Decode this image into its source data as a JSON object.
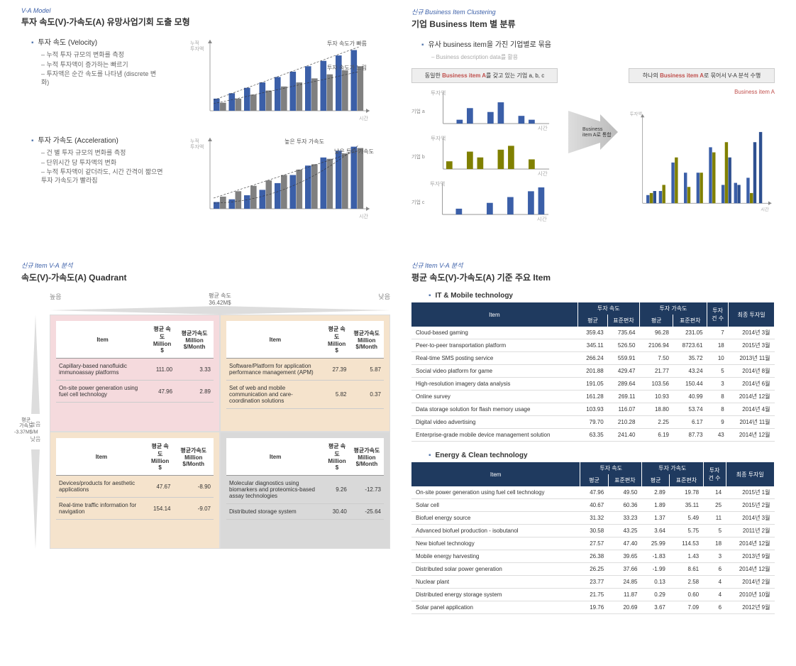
{
  "panel1": {
    "eyebrow": "V-A Model",
    "title": "투자 속도(V)-가속도(A) 유망사업기회 도출 모형",
    "velocity": {
      "head": "투자 속도 (Velocity)",
      "bullets": [
        "누적 투자 규모의 변화를 측정",
        "누적 투자액이 증가하는 빠르기",
        "투자액은 순간 속도를 나타냄 (discrete 변화)"
      ],
      "chart": {
        "xlabel": "시간",
        "ylabel": "누적\\n투자액",
        "bars1": [
          18,
          26,
          34,
          42,
          50,
          58,
          66,
          74,
          82,
          90
        ],
        "bars2": [
          12,
          18,
          24,
          30,
          36,
          42,
          48,
          54,
          60,
          66
        ],
        "line1_label": "투자 속도가 빠름",
        "line2_label": "투자 속도가 느림",
        "bar1_color": "#3b5fa8",
        "bar2_color": "#808080"
      }
    },
    "accel": {
      "head": "투자 가속도 (Acceleration)",
      "bullets": [
        "건 별 투자 규모의 변화를 측정",
        "단위시간 당 투자액의 변화",
        "누적 투자액이 같더라도, 시간 간격이 짧으면 투자 가속도가 빨라짐"
      ],
      "chart": {
        "xlabel": "시간",
        "ylabel": "누적\\n투자액",
        "curve_label_hi": "높은 투자 가속도",
        "curve_label_lo": "낮은 투자 가속도",
        "bars1": [
          10,
          14,
          20,
          28,
          38,
          50,
          64,
          76,
          86,
          92
        ],
        "bars2": [
          18,
          26,
          34,
          42,
          50,
          58,
          66,
          74,
          82,
          90
        ]
      }
    }
  },
  "panel2": {
    "eyebrow": "신규 Business Item Clustering",
    "title": "기업 Business Item 별 분류",
    "bullet": "유사 business item을 가진 기업별로 묶음",
    "sub": "Business description data를 활용",
    "left_hdr_pre": "동일한 ",
    "left_hdr_kw": "Business item A",
    "left_hdr_post": "를 갖고 있는 기업 a, b, c",
    "right_hdr_pre": "하나의 ",
    "right_hdr_kw": "Business item A",
    "right_hdr_post": "로 묶어서 V-A 분석 수행",
    "merge_label": "Business item A로 통합",
    "company_labels": [
      "기업 a",
      "기업 b",
      "기업 c"
    ],
    "mini_axis_x": "시간",
    "mini_axis_y": "투자액",
    "mini_a": [
      0,
      10,
      40,
      0,
      30,
      55,
      0,
      20,
      10,
      0
    ],
    "mini_b": [
      20,
      0,
      45,
      30,
      0,
      50,
      60,
      0,
      25,
      0
    ],
    "mini_c": [
      0,
      15,
      0,
      0,
      30,
      0,
      45,
      0,
      60,
      70
    ],
    "big_label": "Business item A",
    "big_bars": [
      [
        8,
        10,
        12
      ],
      [
        12,
        18,
        0
      ],
      [
        40,
        45,
        0
      ],
      [
        30,
        16,
        0
      ],
      [
        30,
        30,
        0
      ],
      [
        55,
        50,
        0
      ],
      [
        18,
        60,
        45
      ],
      [
        20,
        0,
        18
      ],
      [
        25,
        10,
        60
      ],
      [
        0,
        0,
        70
      ]
    ],
    "colors": [
      "#3b5fa8",
      "#808000",
      "#2e5090"
    ]
  },
  "panel3": {
    "eyebrow": "신규 Item V-A 분석",
    "title": "속도(V)-가속도(A) Quadrant",
    "x_hi": "높음",
    "x_lo": "낮음",
    "x_mid_lbl": "평균 속도",
    "x_mid_val": "36.42M$",
    "y_hi": "높음",
    "y_lo": "낮음",
    "y_mid_lbl": "평균\\n가속도",
    "y_mid_val": "-3.37M$/M",
    "col_item": "Item",
    "col_v": "평균 속도\\nMillion $",
    "col_a": "평균가속도\\nMillion $/Month",
    "q": [
      {
        "color": "pink",
        "rows": [
          [
            "Capillary-based nanofluidic immunoassay platforms",
            "111.00",
            "3.33"
          ],
          [
            "On-site power generation using fuel cell technology",
            "47.96",
            "2.89"
          ]
        ]
      },
      {
        "color": "orange",
        "rows": [
          [
            "Software/Platform for application performance management (APM)",
            "27.39",
            "5.87"
          ],
          [
            "Set of web and mobile communication and care-coordination solutions",
            "5.82",
            "0.37"
          ]
        ]
      },
      {
        "color": "orange",
        "rows": [
          [
            "Devices/products for aesthetic applications",
            "47.67",
            "-8.90"
          ],
          [
            "Real-time traffic information for navigation",
            "154.14",
            "-9.07"
          ]
        ]
      },
      {
        "color": "gray",
        "rows": [
          [
            "Molecular diagnostics using biomarkers and proteomics-based assay technologies",
            "9.26",
            "-12.73"
          ],
          [
            "Distributed storage system",
            "30.40",
            "-25.64"
          ]
        ]
      }
    ]
  },
  "panel4": {
    "eyebrow": "신규 Item V-A 분석",
    "title": "평균 속도(V)-가속도(A) 기준 주요 Item",
    "groups": [
      {
        "name": "IT & Mobile technology",
        "rows": [
          [
            "Cloud-based gaming",
            "359.43",
            "735.64",
            "96.28",
            "231.05",
            "7",
            "2014년 3월"
          ],
          [
            "Peer-to-peer transportation platform",
            "345.11",
            "526.50",
            "2106.94",
            "8723.61",
            "18",
            "2015년 3월"
          ],
          [
            "Real-time SMS posting service",
            "266.24",
            "559.91",
            "7.50",
            "35.72",
            "10",
            "2013년 11월"
          ],
          [
            "Social video platform for game",
            "201.88",
            "429.47",
            "21.77",
            "43.24",
            "5",
            "2014년 8월"
          ],
          [
            "High-resolution imagery data analysis",
            "191.05",
            "289.64",
            "103.56",
            "150.44",
            "3",
            "2014년 6월"
          ],
          [
            "Online survey",
            "161.28",
            "269.11",
            "10.93",
            "40.99",
            "8",
            "2014년 12월"
          ],
          [
            "Data storage solution for flash memory usage",
            "103.93",
            "116.07",
            "18.80",
            "53.74",
            "8",
            "2014년 4월"
          ],
          [
            "Digital video advertising",
            "79.70",
            "210.28",
            "2.25",
            "6.17",
            "9",
            "2014년 11월"
          ],
          [
            "Enterprise-grade mobile device management solution",
            "63.35",
            "241.40",
            "6.19",
            "87.73",
            "43",
            "2014년 12월"
          ]
        ]
      },
      {
        "name": "Energy & Clean technology",
        "rows": [
          [
            "On-site power generation using fuel cell technology",
            "47.96",
            "49.50",
            "2.89",
            "19.78",
            "14",
            "2015년 1월"
          ],
          [
            "Solar cell",
            "40.67",
            "60.36",
            "1.89",
            "35.11",
            "25",
            "2015년 2월"
          ],
          [
            "Biofuel energy source",
            "31.32",
            "33.23",
            "1.37",
            "5.49",
            "11",
            "2014년 3월"
          ],
          [
            "Advanced biofuel production - isobutanol",
            "30.58",
            "43.25",
            "3.64",
            "5.75",
            "5",
            "2011년 2월"
          ],
          [
            "New biofuel technology",
            "27.57",
            "47.40",
            "25.99",
            "114.53",
            "18",
            "2014년 12월"
          ],
          [
            "Mobile energy harvesting",
            "26.38",
            "39.65",
            "-1.83",
            "1.43",
            "3",
            "2013년 9월"
          ],
          [
            "Distributed solar power generation",
            "26.25",
            "37.66",
            "-1.99",
            "8.61",
            "6",
            "2014년 12월"
          ],
          [
            "Nuclear plant",
            "23.77",
            "24.85",
            "0.13",
            "2.58",
            "4",
            "2014년 2월"
          ],
          [
            "Distributed energy storage system",
            "21.75",
            "11.87",
            "0.29",
            "0.60",
            "4",
            "2010년 10월"
          ],
          [
            "Solar panel application",
            "19.76",
            "20.69",
            "3.67",
            "7.09",
            "6",
            "2012년 9월"
          ]
        ]
      }
    ],
    "hdr": {
      "item": "Item",
      "v": "투자 속도",
      "a": "투자 가속도",
      "n": "투자\\n건 수",
      "date": "최종 투자일",
      "mean": "평균",
      "sd": "표준편차"
    }
  }
}
